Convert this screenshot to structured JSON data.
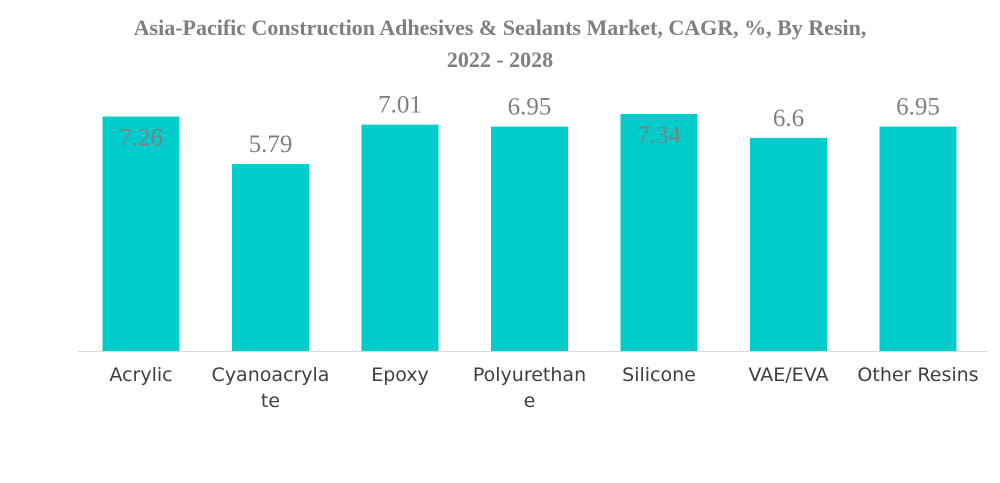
{
  "chart_data": {
    "type": "bar",
    "title_lines": [
      "Asia-Pacific Construction Adhesives & Sealants Market, CAGR, %, By Resin,",
      "2022 - 2028"
    ],
    "categories": [
      "Acrylic",
      "Cyanoacrylate",
      "Epoxy",
      "Polyurethane",
      "Silicone",
      "VAE/EVA",
      "Other Resins"
    ],
    "category_lines": [
      [
        "Acrylic"
      ],
      [
        "Cyanoacryla",
        "te"
      ],
      [
        "Epoxy"
      ],
      [
        "Polyurethan",
        "e"
      ],
      [
        "Silicone"
      ],
      [
        "VAE/EVA"
      ],
      [
        "Other Resins"
      ]
    ],
    "values": [
      7.26,
      5.79,
      7.01,
      6.95,
      7.34,
      6.6,
      6.95
    ],
    "value_labels": [
      "7.26",
      "5.79",
      "7.01",
      "6.95",
      "7.34",
      "6.6",
      "6.95"
    ],
    "label_inside": [
      true,
      false,
      false,
      false,
      true,
      false,
      false
    ],
    "xlabel": "",
    "ylabel": "",
    "ylim": [
      0,
      7.34
    ],
    "grid": false,
    "legend": "none",
    "bar_color": "#00cccc",
    "label_color": "#7f7f7f",
    "axis_color": "#d9d9d9"
  }
}
